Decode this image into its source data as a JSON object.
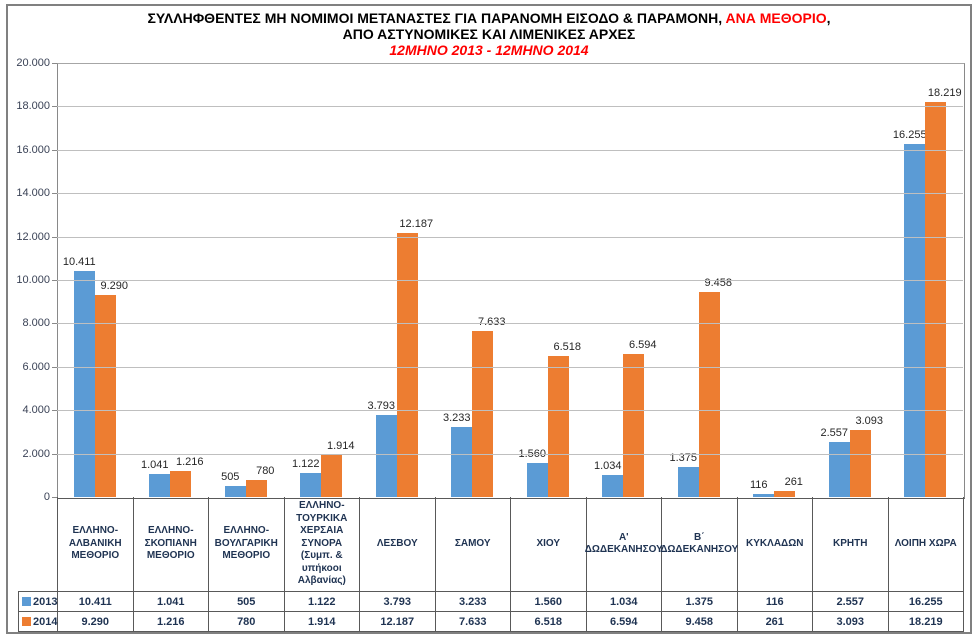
{
  "title": {
    "line1_black": "ΣΥΛΛΗΦΘΕΝΤΕΣ ΜΗ ΝΟΜΙΜΟΙ ΜΕΤΑΝΑΣΤΕΣ ΓΙΑ ΠΑΡΑΝΟΜΗ ΕΙΣΟΔΟ & ΠΑΡΑΜΟΝΗ, ",
    "line1_red": "ΑΝΑ ΜΕΘΟΡΙΟ",
    "line1_tail": ",",
    "line2": "ΑΠΟ ΑΣΤΥΝΟΜΙΚΕΣ ΚΑΙ ΛΙΜΕΝΙΚΕΣ ΑΡΧΕΣ",
    "line3": "12ΜΗΝΟ 2013 - 12ΜΗΝΟ 2014",
    "accent_color": "#FF0000"
  },
  "chart_data": {
    "type": "bar",
    "title": "ΣΥΛΛΗΦΘΕΝΤΕΣ ΜΗ ΝΟΜΙΜΟΙ ΜΕΤΑΝΑΣΤΕΣ ΓΙΑ ΠΑΡΑΝΟΜΗ ΕΙΣΟΔΟ & ΠΑΡΑΜΟΝΗ, ΑΝΑ ΜΕΘΟΡΙΟ, ΑΠΟ ΑΣΤΥΝΟΜΙΚΕΣ ΚΑΙ ΛΙΜΕΝΙΚΕΣ ΑΡΧΕΣ",
    "subtitle": "12ΜΗΝΟ 2013 - 12ΜΗΝΟ 2014",
    "xlabel": "",
    "ylabel": "",
    "ylim": [
      0,
      20000
    ],
    "y_tick_step": 2000,
    "y_tick_labels_top_down": [
      "20.000",
      "18.000",
      "16.000",
      "14.000",
      "12.000",
      "10.000",
      "8.000",
      "6.000",
      "4.000",
      "2.000",
      "0"
    ],
    "grid": true,
    "legend_position": "bottom-table",
    "categories": [
      "ΕΛΛΗΝΟ-ΑΛΒΑΝΙΚΗ ΜΕΘΟΡΙΟ",
      "ΕΛΛΗΝΟ-ΣΚΟΠΙΑΝΗ ΜΕΘΟΡΙΟ",
      "ΕΛΛΗΝΟ-ΒΟΥΛΓΑΡΙΚΗ ΜΕΘΟΡΙΟ",
      "ΕΛΛΗΝΟ-ΤΟΥΡΚΙΚΑ ΧΕΡΣΑΙΑ ΣΥΝΟΡΑ (Συμπ. & υπήκοοι Αλβανίας)",
      "ΛΕΣΒΟΥ",
      "ΣΑΜΟΥ",
      "ΧΙΟΥ",
      "Α' ΔΩΔΕΚΑΝΗΣΟΥ",
      "Β΄ ΔΩΔΕΚΑΝΗΣΟΥ",
      "ΚΥΚΛΑΔΩΝ",
      "ΚΡΗΤΗ",
      "ΛΟΙΠΗ ΧΩΡΑ"
    ],
    "category_lines": [
      [
        "ΕΛΛΗΝΟ-",
        "ΑΛΒΑΝΙΚΗ",
        "ΜΕΘΟΡΙΟ"
      ],
      [
        "ΕΛΛΗΝΟ-",
        "ΣΚΟΠΙΑΝΗ",
        "ΜΕΘΟΡΙΟ"
      ],
      [
        "ΕΛΛΗΝΟ-",
        "ΒΟΥΛΓΑΡΙΚΗ",
        "ΜΕΘΟΡΙΟ"
      ],
      [
        "ΕΛΛΗΝΟ-",
        "ΤΟΥΡΚΙΚΑ",
        "ΧΕΡΣΑΙΑ",
        "ΣΥΝΟΡΑ",
        "(Συμπ. &",
        "υπήκοοι",
        "Αλβανίας)"
      ],
      [
        "ΛΕΣΒΟΥ"
      ],
      [
        "ΣΑΜΟΥ"
      ],
      [
        "ΧΙΟΥ"
      ],
      [
        "Α'",
        "ΔΩΔΕΚΑΝΗΣΟΥ"
      ],
      [
        "Β΄",
        "ΔΩΔΕΚΑΝΗΣΟΥ"
      ],
      [
        "ΚΥΚΛΑΔΩΝ"
      ],
      [
        "ΚΡΗΤΗ"
      ],
      [
        "ΛΟΙΠΗ ΧΩΡΑ"
      ]
    ],
    "series": [
      {
        "name": "2013",
        "color": "#5B9BD5",
        "values": [
          10411,
          1041,
          505,
          1122,
          3793,
          3233,
          1560,
          1034,
          1375,
          116,
          2557,
          16255
        ],
        "labels": [
          "10.411",
          "1.041",
          "505",
          "1.122",
          "3.793",
          "3.233",
          "1.560",
          "1.034",
          "1.375",
          "116",
          "2.557",
          "16.255"
        ]
      },
      {
        "name": "2014",
        "color": "#ED7D31",
        "values": [
          9290,
          1216,
          780,
          1914,
          12187,
          7633,
          6518,
          6594,
          9458,
          261,
          3093,
          18219
        ],
        "labels": [
          "9.290",
          "1.216",
          "780",
          "1.914",
          "12.187",
          "7.633",
          "6.518",
          "6.594",
          "9.458",
          "261",
          "3.093",
          "18.219"
        ]
      }
    ]
  },
  "colors": {
    "bar_2013": "#5B9BD5",
    "bar_2014": "#ED7D31",
    "title_accent": "#FF0000",
    "dark_text": "#1F3352",
    "gridline": "#BFBFBF",
    "table_border": "#595959",
    "outer_border": "#808080"
  }
}
